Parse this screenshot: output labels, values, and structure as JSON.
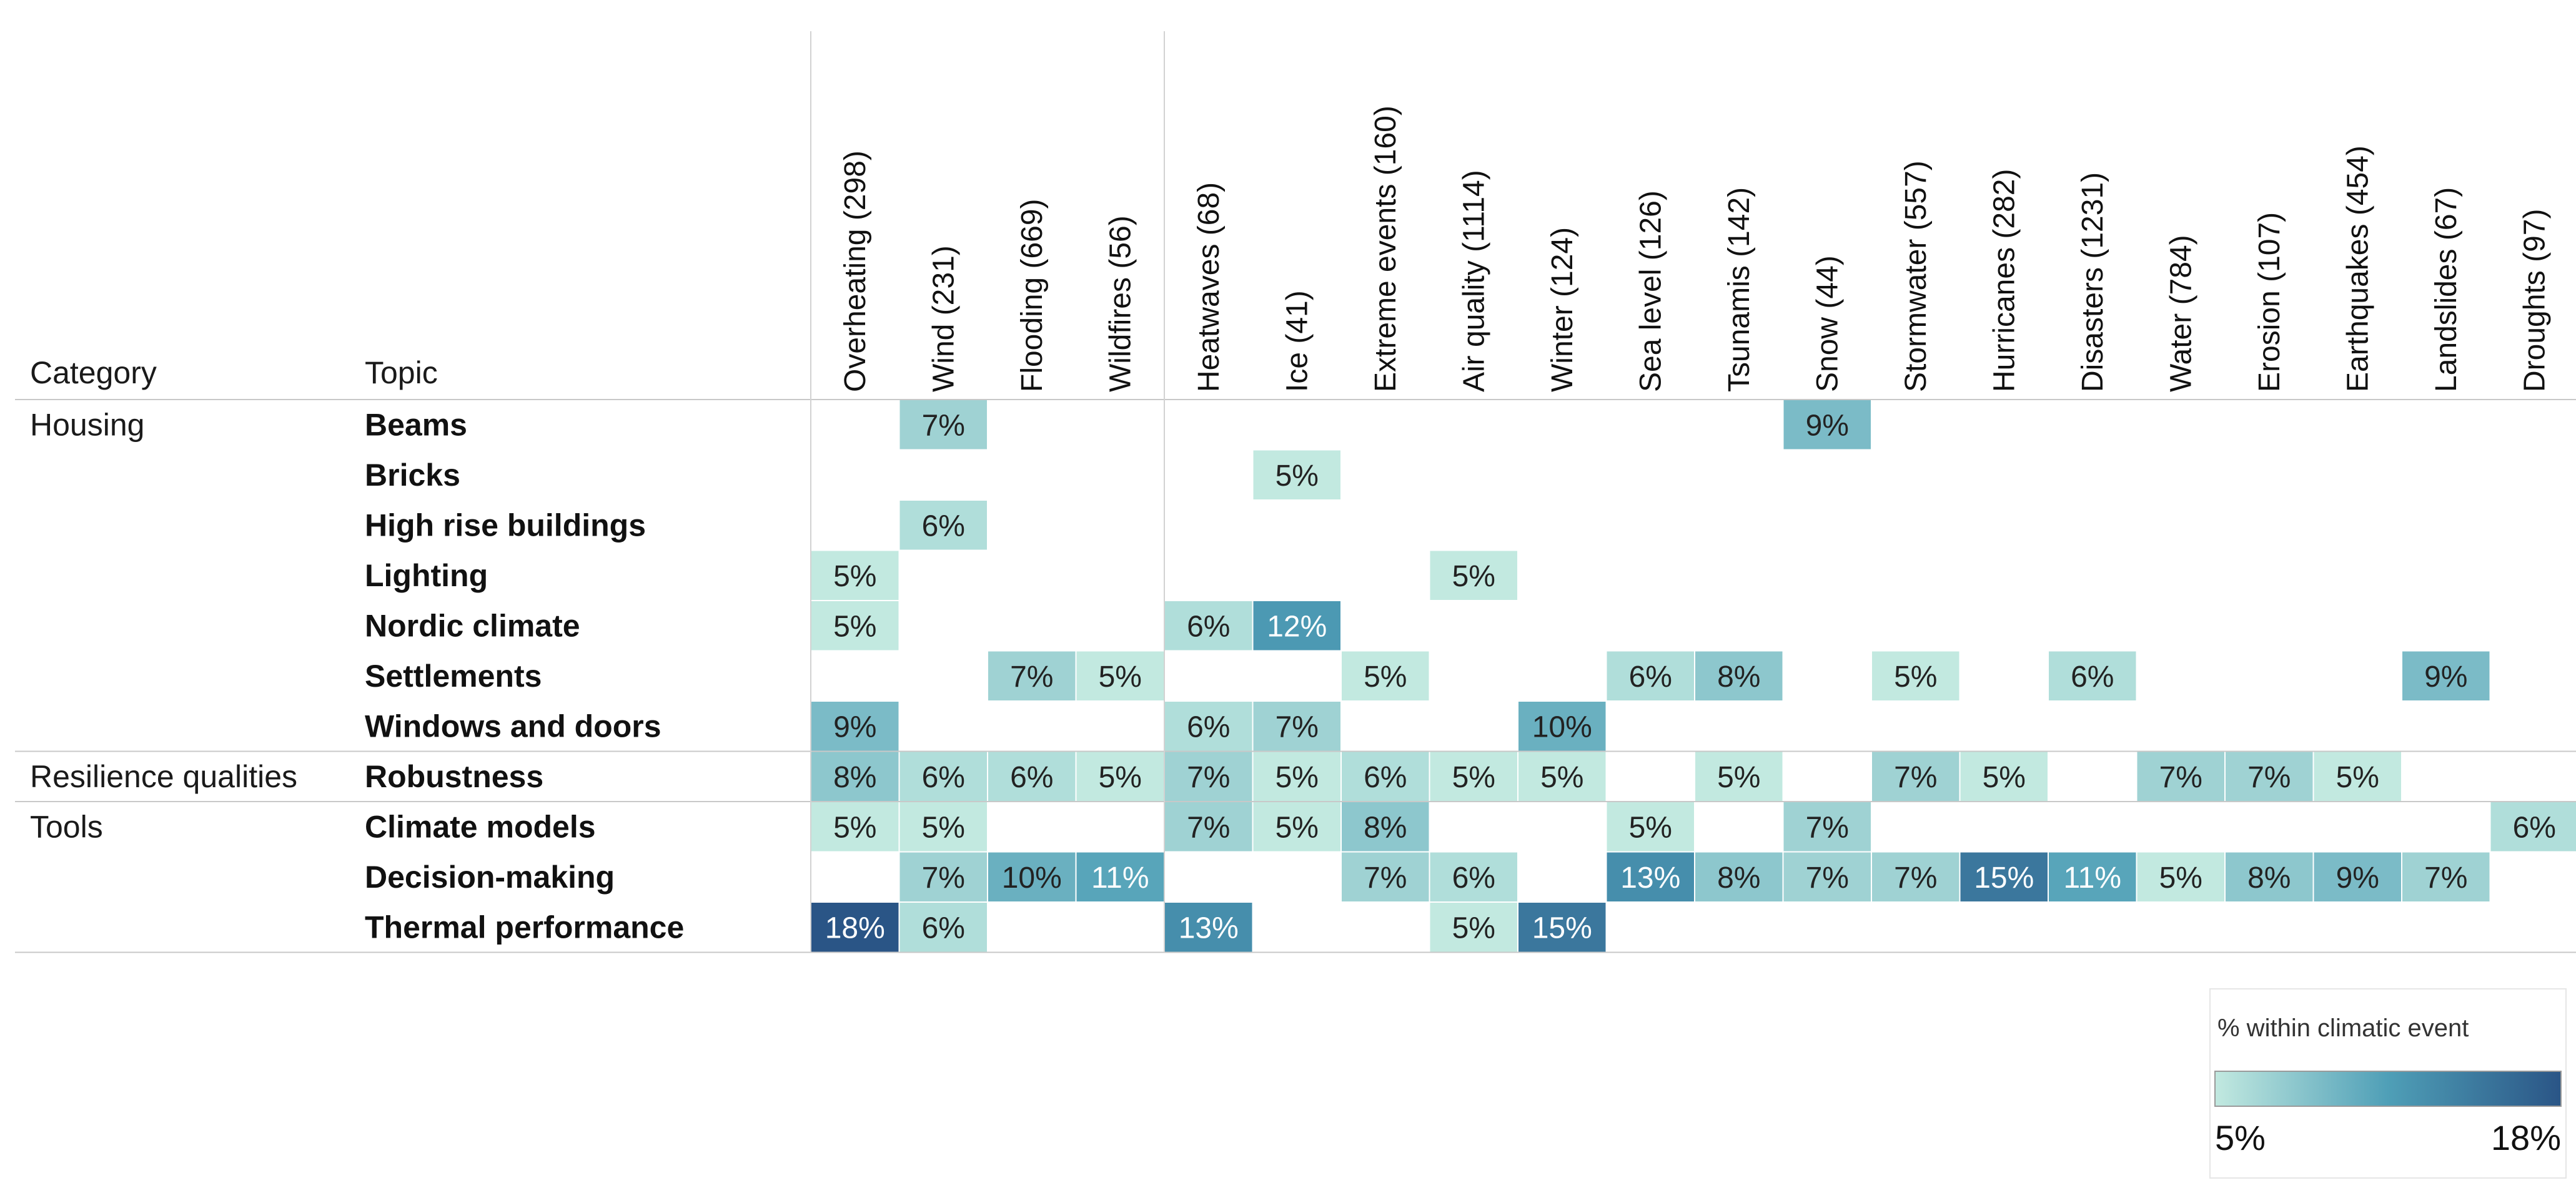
{
  "chart_data": {
    "type": "heatmap",
    "row_header": "Category",
    "topic_header": "Topic",
    "columns": [
      "Overheating (298)",
      "Wind (231)",
      "Flooding (669)",
      "Wildfires (56)",
      "Heatwaves (68)",
      "Ice (41)",
      "Extreme events (160)",
      "Air quality (1114)",
      "Winter (124)",
      "Sea level (126)",
      "Tsunamis (142)",
      "Snow (44)",
      "Stormwater (557)",
      "Hurricanes (282)",
      "Disasters (1231)",
      "Water (784)",
      "Erosion (107)",
      "Earthquakes (454)",
      "Landslides (67)",
      "Droughts (97)"
    ],
    "groups": [
      {
        "category": "Housing",
        "topics": [
          "Beams",
          "Bricks",
          "High rise buildings",
          "Lighting",
          "Nordic climate",
          "Settlements",
          "Windows and doors"
        ]
      },
      {
        "category": "Resilience qualities",
        "topics": [
          "Robustness"
        ]
      },
      {
        "category": "Tools",
        "topics": [
          "Climate models",
          "Decision-making",
          "Thermal performance"
        ]
      }
    ],
    "values": [
      [
        null,
        7,
        null,
        null,
        null,
        null,
        null,
        null,
        null,
        null,
        null,
        9,
        null,
        null,
        null,
        null,
        null,
        null,
        null,
        null
      ],
      [
        null,
        null,
        null,
        null,
        null,
        5,
        null,
        null,
        null,
        null,
        null,
        null,
        null,
        null,
        null,
        null,
        null,
        null,
        null,
        null
      ],
      [
        null,
        6,
        null,
        null,
        null,
        null,
        null,
        null,
        null,
        null,
        null,
        null,
        null,
        null,
        null,
        null,
        null,
        null,
        null,
        null
      ],
      [
        5,
        null,
        null,
        null,
        null,
        null,
        null,
        5,
        null,
        null,
        null,
        null,
        null,
        null,
        null,
        null,
        null,
        null,
        null,
        null
      ],
      [
        5,
        null,
        null,
        null,
        6,
        12,
        null,
        null,
        null,
        null,
        null,
        null,
        null,
        null,
        null,
        null,
        null,
        null,
        null,
        null
      ],
      [
        null,
        null,
        7,
        5,
        null,
        null,
        5,
        null,
        null,
        6,
        8,
        null,
        5,
        null,
        6,
        null,
        null,
        null,
        9,
        null
      ],
      [
        9,
        null,
        null,
        null,
        6,
        7,
        null,
        null,
        10,
        null,
        null,
        null,
        null,
        null,
        null,
        null,
        null,
        null,
        null,
        null
      ],
      [
        8,
        6,
        6,
        5,
        7,
        5,
        6,
        5,
        5,
        null,
        5,
        null,
        7,
        5,
        null,
        7,
        7,
        5,
        null,
        null
      ],
      [
        5,
        5,
        null,
        null,
        7,
        5,
        8,
        null,
        null,
        5,
        null,
        7,
        null,
        null,
        null,
        null,
        null,
        null,
        null,
        6
      ],
      [
        null,
        7,
        10,
        11,
        null,
        null,
        7,
        6,
        null,
        13,
        8,
        7,
        7,
        15,
        11,
        5,
        8,
        9,
        7,
        null
      ],
      [
        18,
        6,
        null,
        null,
        13,
        null,
        null,
        5,
        15,
        null,
        null,
        null,
        null,
        null,
        null,
        null,
        null,
        null,
        null,
        null
      ]
    ],
    "value_suffix": "%",
    "legend": {
      "title": "% within climatic event",
      "min_label": "5%",
      "max_label": "18%",
      "min": 5,
      "max": 18,
      "placement": "bottom-right"
    },
    "color_scale": {
      "low": "#c2e9e0",
      "mid": "#4f9fb7",
      "high": "#2a5586"
    }
  }
}
